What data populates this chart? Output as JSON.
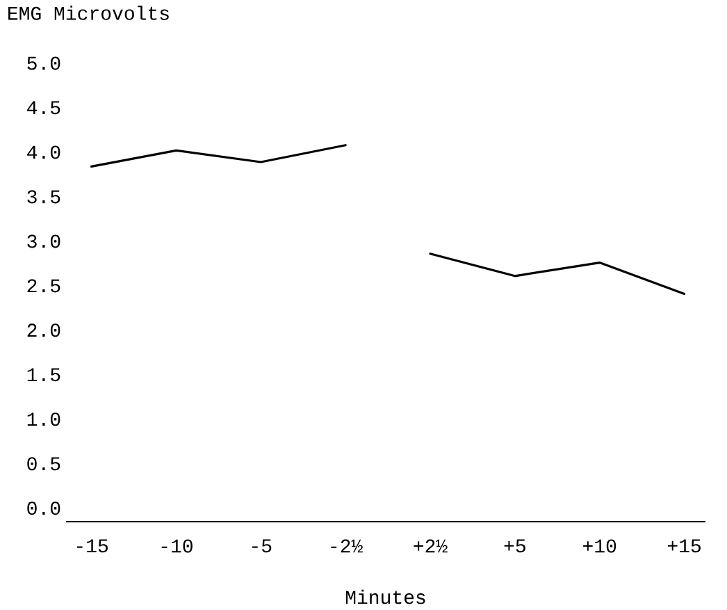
{
  "chart_data": {
    "type": "line",
    "xlabel": "Minutes",
    "ylabel": "EMG Microvolts",
    "categories": [
      "-15",
      "-10",
      "-5",
      "-2½",
      "+2½",
      "+5",
      "+10",
      "+15"
    ],
    "series": [
      {
        "color": "#000000",
        "values": [
          3.84,
          4.02,
          3.89,
          4.08,
          null,
          null,
          null,
          null
        ]
      },
      {
        "color": "#000000",
        "values": [
          null,
          null,
          null,
          null,
          2.86,
          2.61,
          2.76,
          2.41
        ]
      }
    ],
    "ylim": [
      -0.15,
      5
    ],
    "yticks": [
      {
        "value": 0,
        "label": "0.0"
      },
      {
        "value": 0.5,
        "label": "0.5"
      },
      {
        "value": 1,
        "label": "1.0"
      },
      {
        "value": 1.5,
        "label": "1.5"
      },
      {
        "value": 2,
        "label": "2.0"
      },
      {
        "value": 2.5,
        "label": "2.5"
      },
      {
        "value": 3,
        "label": "3.0"
      },
      {
        "value": 3.5,
        "label": "3.5"
      },
      {
        "value": 4,
        "label": "4.0"
      },
      {
        "value": 4.5,
        "label": "4.5"
      },
      {
        "value": 5,
        "label": "5.0"
      }
    ]
  }
}
